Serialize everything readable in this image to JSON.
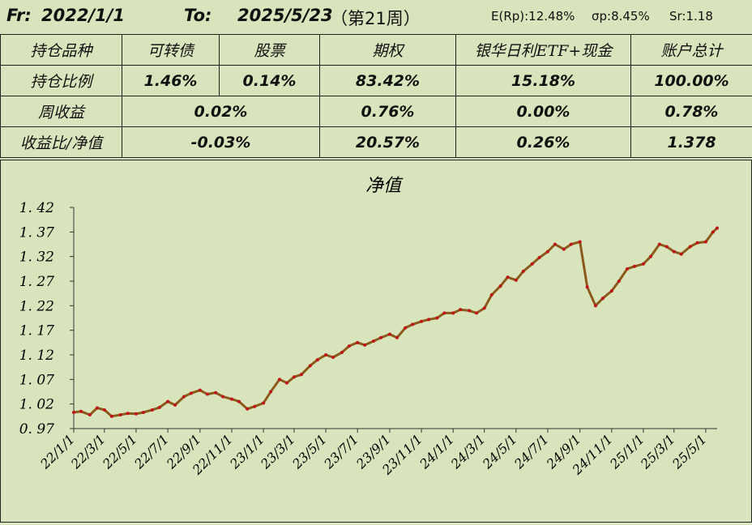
{
  "header": {
    "from_label": "Fr:",
    "from_date": "2022/1/1",
    "to_label": "To:",
    "to_date": "2025/5/23",
    "week": "（第21周）",
    "er": "E(Rp):12.48%",
    "sigma": "σp:8.45%",
    "sr": "Sr:1.18"
  },
  "table": {
    "header": [
      "持仓品种",
      "可转债",
      "股票",
      "期权",
      "银华日利ETF+现金",
      "账户总计"
    ],
    "position": {
      "label": "持仓比例",
      "values": [
        "1.46%",
        "0.14%",
        "83.42%",
        "15.18%",
        "100.00%"
      ]
    },
    "weekly": {
      "label": "周收益",
      "values": [
        "0.02%",
        "0.76%",
        "0.00%",
        "0.78%"
      ]
    },
    "ratio": {
      "label": "收益比/净值",
      "values": [
        "-0.03%",
        "20.57%",
        "0.26%",
        "1.378"
      ]
    }
  },
  "colors": {
    "background": "#d8e4bc",
    "line": "#8b5a1b",
    "marker": "#c0141a"
  },
  "chart_data": {
    "type": "line",
    "title": "净值",
    "ylim": [
      0.97,
      1.42
    ],
    "yticks": [
      "0.97",
      "1.02",
      "1.07",
      "1.12",
      "1.17",
      "1.22",
      "1.27",
      "1.32",
      "1.37",
      "1.42"
    ],
    "xticks": [
      "22/1/1",
      "22/3/1",
      "22/5/1",
      "22/7/1",
      "22/9/1",
      "22/11/1",
      "23/1/1",
      "23/3/1",
      "23/5/1",
      "23/7/1",
      "23/9/1",
      "23/11/1",
      "24/1/1",
      "24/3/1",
      "24/5/1",
      "24/7/1",
      "24/9/1",
      "24/11/1",
      "25/1/1",
      "25/3/1",
      "25/5/1"
    ],
    "x": [
      "2022-01-01",
      "2022-01-15",
      "2022-02-01",
      "2022-02-15",
      "2022-03-01",
      "2022-03-15",
      "2022-04-01",
      "2022-04-15",
      "2022-05-01",
      "2022-05-15",
      "2022-06-01",
      "2022-06-15",
      "2022-07-01",
      "2022-07-15",
      "2022-08-01",
      "2022-08-15",
      "2022-09-01",
      "2022-09-15",
      "2022-10-01",
      "2022-10-15",
      "2022-11-01",
      "2022-11-15",
      "2022-12-01",
      "2022-12-15",
      "2023-01-01",
      "2023-01-15",
      "2023-02-01",
      "2023-02-15",
      "2023-03-01",
      "2023-03-15",
      "2023-04-01",
      "2023-04-15",
      "2023-05-01",
      "2023-05-15",
      "2023-06-01",
      "2023-06-15",
      "2023-07-01",
      "2023-07-15",
      "2023-08-01",
      "2023-08-15",
      "2023-09-01",
      "2023-09-15",
      "2023-10-01",
      "2023-10-15",
      "2023-11-01",
      "2023-11-15",
      "2023-12-01",
      "2023-12-15",
      "2024-01-01",
      "2024-01-15",
      "2024-02-01",
      "2024-02-15",
      "2024-03-01",
      "2024-03-15",
      "2024-04-01",
      "2024-04-15",
      "2024-05-01",
      "2024-05-15",
      "2024-06-01",
      "2024-06-15",
      "2024-07-01",
      "2024-07-15",
      "2024-08-01",
      "2024-08-15",
      "2024-09-01",
      "2024-09-15",
      "2024-10-01",
      "2024-10-15",
      "2024-11-01",
      "2024-11-15",
      "2024-12-01",
      "2024-12-15",
      "2025-01-01",
      "2025-01-15",
      "2025-02-01",
      "2025-02-15",
      "2025-03-01",
      "2025-03-15",
      "2025-04-01",
      "2025-04-15",
      "2025-05-01",
      "2025-05-15",
      "2025-05-23"
    ],
    "values": [
      1.003,
      1.005,
      0.998,
      1.012,
      1.008,
      0.995,
      0.998,
      1.001,
      1.0,
      1.003,
      1.008,
      1.013,
      1.025,
      1.018,
      1.035,
      1.042,
      1.048,
      1.04,
      1.043,
      1.035,
      1.03,
      1.025,
      1.01,
      1.015,
      1.022,
      1.045,
      1.07,
      1.063,
      1.075,
      1.08,
      1.098,
      1.11,
      1.12,
      1.115,
      1.125,
      1.138,
      1.145,
      1.14,
      1.148,
      1.155,
      1.162,
      1.155,
      1.175,
      1.182,
      1.188,
      1.192,
      1.195,
      1.205,
      1.205,
      1.212,
      1.21,
      1.205,
      1.215,
      1.242,
      1.26,
      1.278,
      1.272,
      1.29,
      1.305,
      1.318,
      1.33,
      1.345,
      1.335,
      1.345,
      1.35,
      1.258,
      1.22,
      1.235,
      1.25,
      1.27,
      1.295,
      1.3,
      1.305,
      1.32,
      1.345,
      1.34,
      1.33,
      1.325,
      1.34,
      1.348,
      1.35,
      1.37,
      1.378
    ]
  }
}
